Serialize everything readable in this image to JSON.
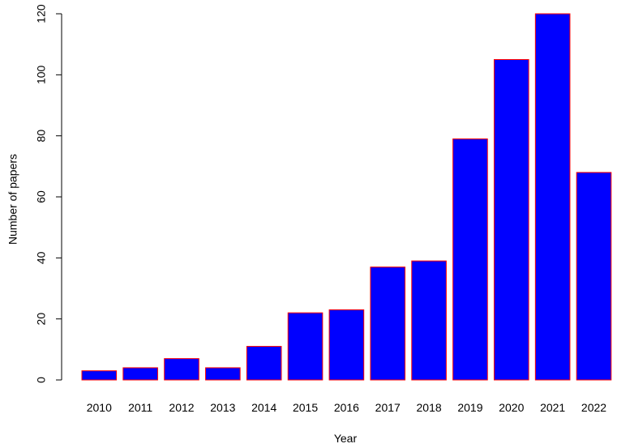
{
  "chart_data": {
    "type": "bar",
    "title": "",
    "xlabel": "Year",
    "ylabel": "Number of papers",
    "categories": [
      "2010",
      "2011",
      "2012",
      "2013",
      "2014",
      "2015",
      "2016",
      "2017",
      "2018",
      "2019",
      "2020",
      "2021",
      "2022"
    ],
    "values": [
      3,
      4,
      7,
      4,
      11,
      22,
      23,
      37,
      39,
      79,
      105,
      120,
      68
    ],
    "ylim": [
      0,
      120
    ],
    "yticks": [
      0,
      20,
      40,
      60,
      80,
      100,
      120
    ],
    "grid": false,
    "colors": {
      "bar_fill": "#0000FF",
      "bar_border": "#FF0000"
    }
  }
}
